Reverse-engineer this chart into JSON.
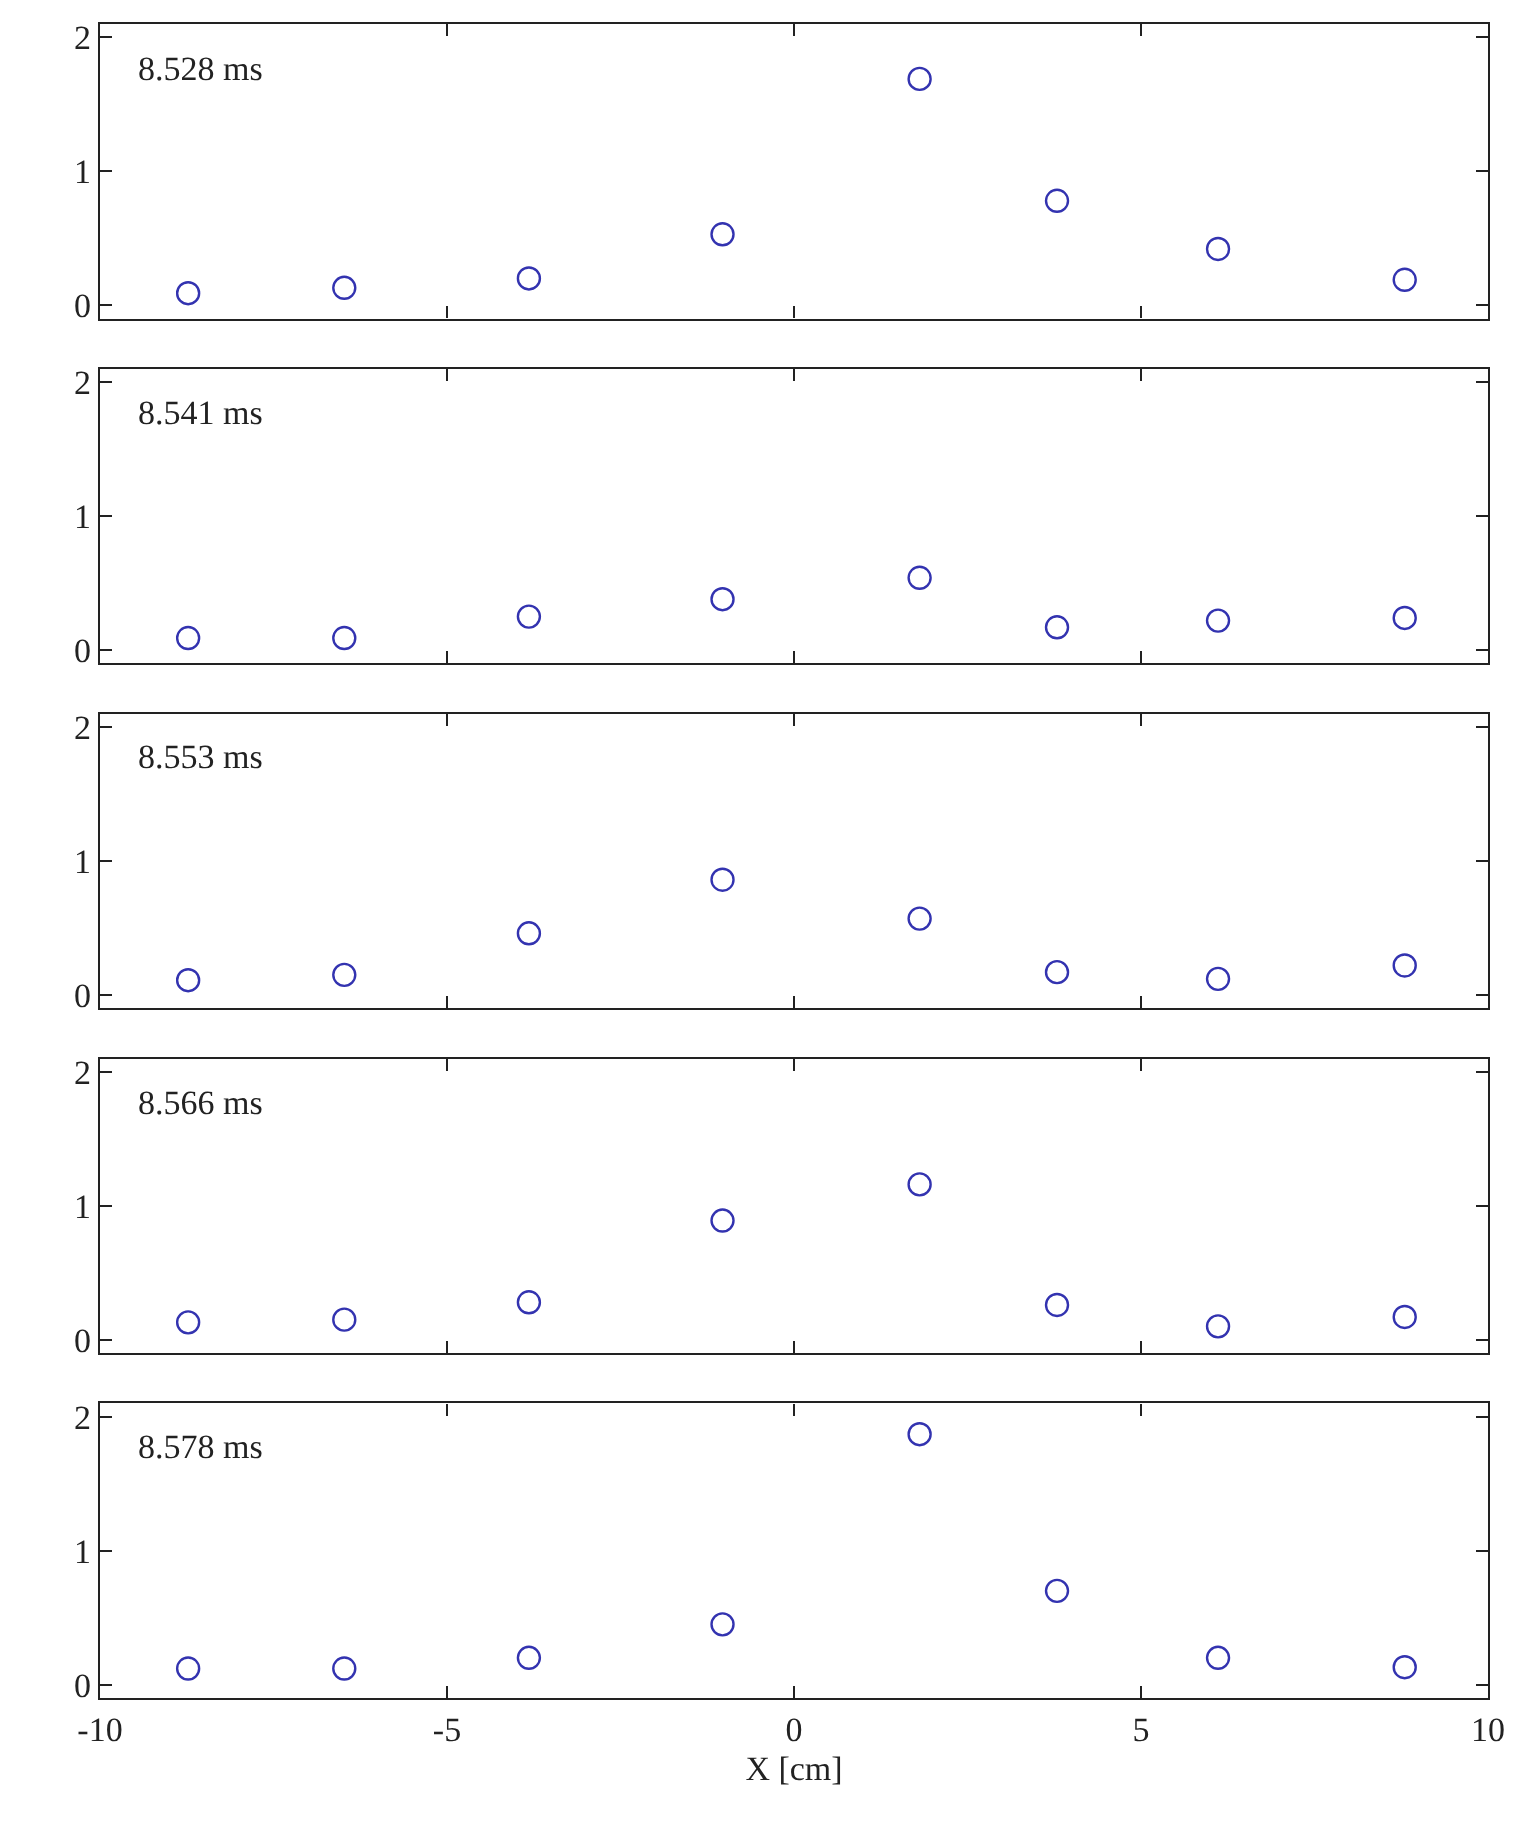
{
  "chart_data": [
    {
      "type": "scatter",
      "annotations": [
        "8.528 ms"
      ],
      "x": [
        -8.73,
        -6.48,
        -3.82,
        -1.03,
        1.81,
        3.79,
        6.11,
        8.8
      ],
      "series": [
        {
          "color": "#3333b0",
          "values": [
            0.09,
            0.13,
            0.2,
            0.53,
            1.69,
            0.78,
            0.42,
            0.19
          ]
        }
      ],
      "xlim": [
        -10,
        10
      ],
      "ylim": [
        -0.1,
        2.1
      ],
      "xticks": [
        -10,
        -5,
        0,
        5,
        10
      ],
      "yticks": [
        0,
        1,
        2
      ],
      "marker": "circle",
      "tick_labels": "y"
    },
    {
      "type": "scatter",
      "annotations": [
        "8.541 ms"
      ],
      "x": [
        -8.73,
        -6.48,
        -3.82,
        -1.03,
        1.81,
        3.79,
        6.11,
        8.8
      ],
      "series": [
        {
          "color": "#3333b0",
          "values": [
            0.09,
            0.09,
            0.25,
            0.38,
            0.54,
            0.17,
            0.22,
            0.24
          ]
        }
      ],
      "xlim": [
        -10,
        10
      ],
      "ylim": [
        -0.1,
        2.1
      ],
      "xticks": [
        -10,
        -5,
        0,
        5,
        10
      ],
      "yticks": [
        0,
        1,
        2
      ],
      "marker": "circle",
      "tick_labels": "y"
    },
    {
      "type": "scatter",
      "annotations": [
        "8.553 ms"
      ],
      "x": [
        -8.73,
        -6.48,
        -3.82,
        -1.03,
        1.81,
        3.79,
        6.11,
        8.8
      ],
      "series": [
        {
          "color": "#3333b0",
          "values": [
            0.11,
            0.15,
            0.46,
            0.86,
            0.57,
            0.17,
            0.12,
            0.22
          ]
        }
      ],
      "xlim": [
        -10,
        10
      ],
      "ylim": [
        -0.1,
        2.1
      ],
      "xticks": [
        -10,
        -5,
        0,
        5,
        10
      ],
      "yticks": [
        0,
        1,
        2
      ],
      "marker": "circle",
      "tick_labels": "y"
    },
    {
      "type": "scatter",
      "annotations": [
        "8.566 ms"
      ],
      "x": [
        -8.73,
        -6.48,
        -3.82,
        -1.03,
        1.81,
        3.79,
        6.11,
        8.8
      ],
      "series": [
        {
          "color": "#3333b0",
          "values": [
            0.13,
            0.15,
            0.28,
            0.89,
            1.16,
            0.26,
            0.1,
            0.17
          ]
        }
      ],
      "xlim": [
        -10,
        10
      ],
      "ylim": [
        -0.1,
        2.1
      ],
      "xticks": [
        -10,
        -5,
        0,
        5,
        10
      ],
      "yticks": [
        0,
        1,
        2
      ],
      "marker": "circle",
      "tick_labels": "y"
    },
    {
      "type": "scatter",
      "annotations": [
        "8.578 ms"
      ],
      "xlabel": "X [cm]",
      "x": [
        -8.73,
        -6.48,
        -3.82,
        -1.03,
        1.81,
        3.79,
        6.11,
        8.8
      ],
      "series": [
        {
          "color": "#3333b0",
          "values": [
            0.12,
            0.12,
            0.2,
            0.45,
            1.87,
            0.7,
            0.2,
            0.13
          ]
        }
      ],
      "xlim": [
        -10,
        10
      ],
      "ylim": [
        -0.1,
        2.1
      ],
      "xticks": [
        -10,
        -5,
        0,
        5,
        10
      ],
      "yticks": [
        0,
        1,
        2
      ],
      "marker": "circle"
    }
  ]
}
